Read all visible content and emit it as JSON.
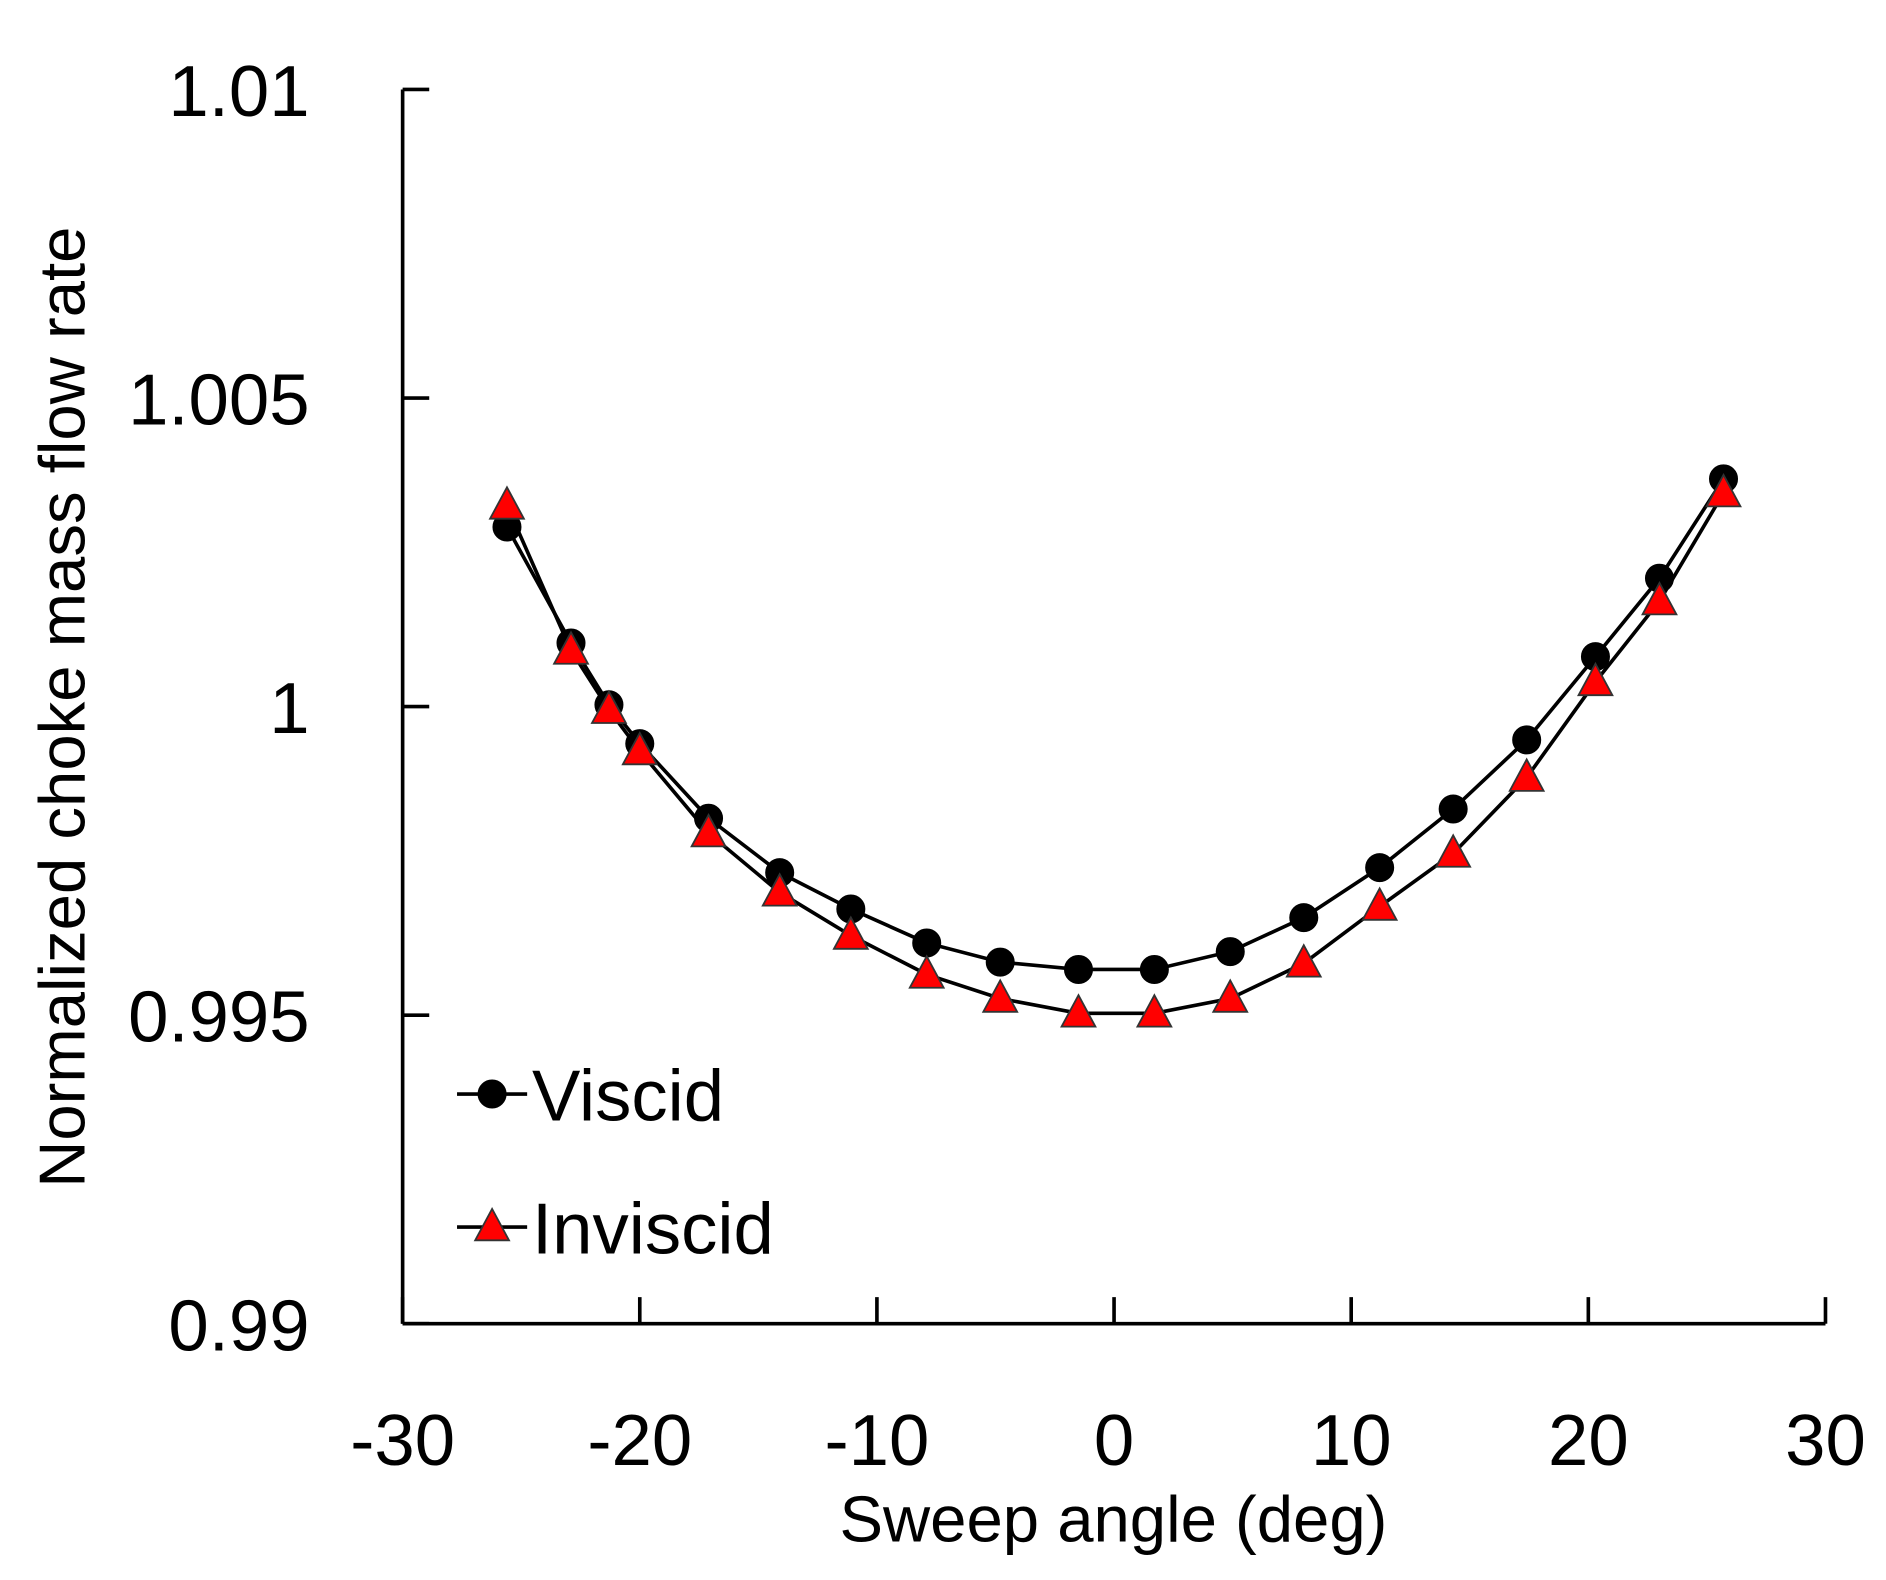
{
  "chart_data": {
    "type": "line",
    "title": "",
    "xlabel": "Sweep angle (deg)",
    "ylabel": "Normalized choke mass flow rate",
    "xlim": [
      -30,
      30
    ],
    "ylim": [
      0.99,
      1.01
    ],
    "xticks": [
      "-30",
      "-20",
      "-10",
      "0",
      "10",
      "20",
      "30"
    ],
    "yticks": [
      "0.99",
      "0.995",
      "1",
      "1.005",
      "1.01"
    ],
    "grid": false,
    "legend_position": "bottom-left",
    "x": [
      -25.6,
      -22.9,
      -21.3,
      -20.0,
      -17.1,
      -14.1,
      -11.1,
      -7.9,
      -4.8,
      -1.5,
      1.7,
      4.9,
      8.0,
      11.2,
      14.3,
      17.4,
      20.3,
      23.0,
      25.7
    ],
    "series": [
      {
        "name": "Viscid",
        "marker": "circle",
        "color": "#000000",
        "values": [
          1.00291,
          1.00103,
          1.00003,
          0.9994,
          0.99819,
          0.99731,
          0.99672,
          0.99617,
          0.99586,
          0.99574,
          0.99574,
          0.99603,
          0.99658,
          0.99739,
          0.99834,
          0.99946,
          1.00081,
          1.00208,
          1.00369
        ]
      },
      {
        "name": "Inviscid",
        "marker": "triangle",
        "color": "#ff0000",
        "values": [
          1.00326,
          1.00091,
          0.99995,
          0.99928,
          0.99795,
          0.99699,
          0.99629,
          0.99566,
          0.99527,
          0.99503,
          0.99503,
          0.99527,
          0.99584,
          0.99676,
          0.99762,
          0.99885,
          1.0004,
          1.00171,
          1.00346
        ]
      }
    ]
  }
}
